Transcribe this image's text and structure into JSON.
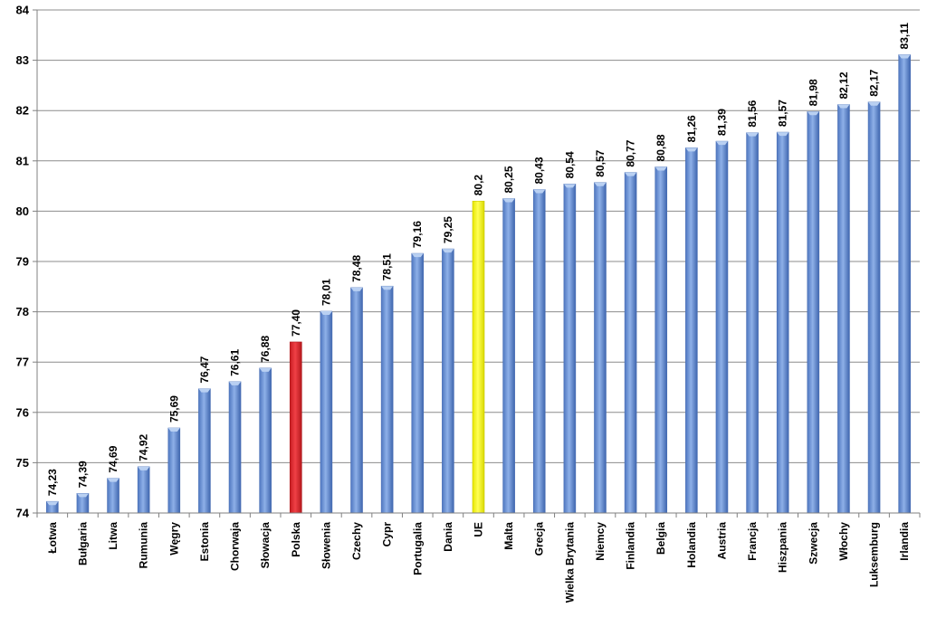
{
  "chart_data": {
    "type": "bar",
    "categories": [
      "Łotwa",
      "Bułgaria",
      "Litwa",
      "Rumunia",
      "Węgry",
      "Estonia",
      "Chorwaja",
      "Słowacja",
      "Polska",
      "Słowenia",
      "Czechy",
      "Cypr",
      "Portugalia",
      "Dania",
      "UE",
      "Malta",
      "Grecja",
      "Wielka Brytania",
      "Niemcy",
      "Finlandia",
      "Belgia",
      "Holandia",
      "Austria",
      "Francja",
      "Hiszpania",
      "Szwecja",
      "Włochy",
      "Luksemburg",
      "Irlandia"
    ],
    "values": [
      74.23,
      74.39,
      74.69,
      74.92,
      75.69,
      76.47,
      76.61,
      76.88,
      77.4,
      78.01,
      78.48,
      78.51,
      79.16,
      79.25,
      80.2,
      80.25,
      80.43,
      80.54,
      80.57,
      80.77,
      80.88,
      81.26,
      81.39,
      81.56,
      81.57,
      81.98,
      82.12,
      82.17,
      83.11
    ],
    "value_labels": [
      "74,23",
      "74,39",
      "74,69",
      "74,92",
      "75,69",
      "76,47",
      "76,61",
      "76,88",
      "77,40",
      "78,01",
      "78,48",
      "78,51",
      "79,16",
      "79,25",
      "80,2",
      "80,25",
      "80,43",
      "80,54",
      "80,57",
      "80,77",
      "80,88",
      "81,26",
      "81,39",
      "81,56",
      "81,57",
      "81,98",
      "82,12",
      "82,17",
      "83,11"
    ],
    "yticks": [
      74,
      75,
      76,
      77,
      78,
      79,
      80,
      81,
      82,
      83,
      84
    ],
    "ylim": [
      74,
      84
    ],
    "grid": true,
    "legend": "none",
    "colors": {
      "default": "#6f95d4",
      "Polska": "#e3262b",
      "UE": "#f5f51e",
      "gridline": "#8c8c8c"
    }
  }
}
